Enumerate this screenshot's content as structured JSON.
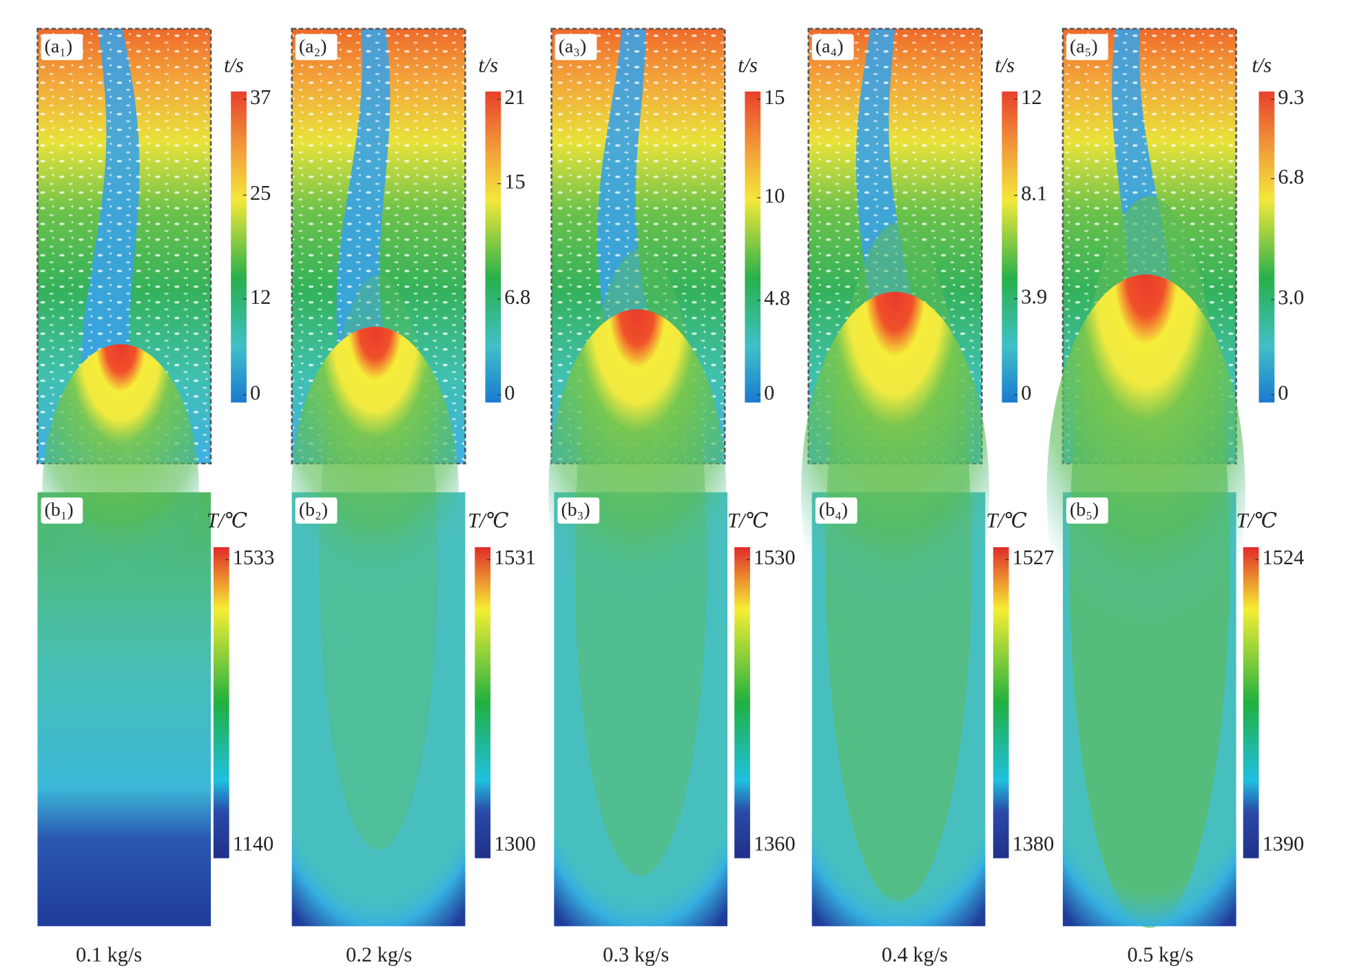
{
  "figure": {
    "top": [
      {
        "label": "(a₁)",
        "scale_title": "t/s",
        "ticks": [
          0,
          12,
          25,
          37
        ]
      },
      {
        "label": "(a₂)",
        "scale_title": "t/s",
        "ticks": [
          0,
          6.8,
          15,
          21
        ]
      },
      {
        "label": "(a₃)",
        "scale_title": "t/s",
        "ticks": [
          0,
          4.8,
          10,
          15
        ]
      },
      {
        "label": "(a₄)",
        "scale_title": "t/s",
        "ticks": [
          0,
          3.9,
          8.1,
          12
        ]
      },
      {
        "label": "(a₅)",
        "scale_title": "t/s",
        "ticks": [
          0,
          {
            "value": 3,
            "label": "3.0"
          },
          6.8,
          9.3
        ]
      }
    ],
    "bottom": [
      {
        "label": "(b₁)",
        "scale_title": "T/℃",
        "ticks": [
          1140,
          1533
        ]
      },
      {
        "label": "(b₂)",
        "scale_title": "T/℃",
        "ticks": [
          1300,
          1531
        ]
      },
      {
        "label": "(b₃)",
        "scale_title": "T/℃",
        "ticks": [
          1360,
          1530
        ]
      },
      {
        "label": "(b₄)",
        "scale_title": "T/℃",
        "ticks": [
          1380,
          1527
        ]
      },
      {
        "label": "(b₅)",
        "scale_title": "T/℃",
        "ticks": [
          1390,
          1524
        ]
      }
    ],
    "captions": [
      "0.1 kg/s",
      "0.2 kg/s",
      "0.3 kg/s",
      "0.4 kg/s",
      "0.5 kg/s"
    ]
  }
}
